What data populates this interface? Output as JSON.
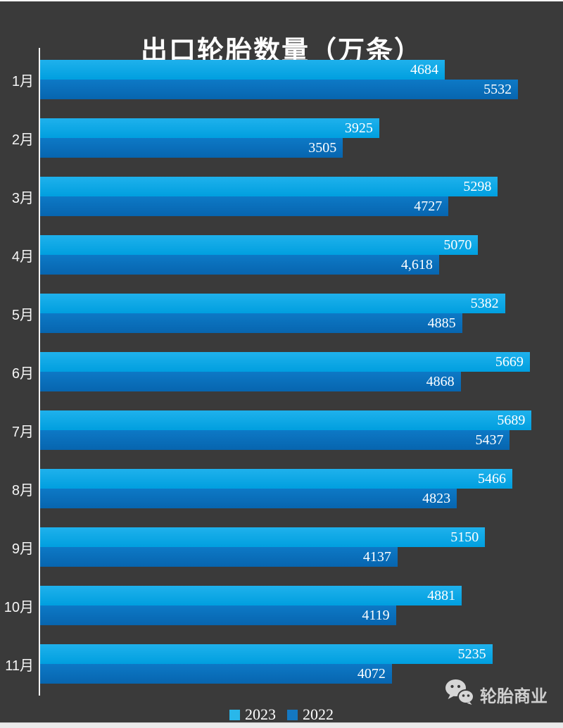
{
  "page": {
    "background": "#3a3a3a",
    "top_border_color": "#ffffff",
    "bottom_strip_color": "#ebebeb"
  },
  "chart_data": {
    "type": "bar",
    "orientation": "horizontal",
    "title": "出口轮胎数量（万条）",
    "categories": [
      "1月",
      "2月",
      "3月",
      "4月",
      "5月",
      "6月",
      "7月",
      "8月",
      "9月",
      "10月",
      "11月"
    ],
    "series": [
      {
        "name": "2023",
        "color": "#29b7ea",
        "color_top": "#1fb1ec",
        "color_bottom": "#009fdf",
        "values": [
          4684,
          3925,
          5298,
          5070,
          5382,
          5669,
          5689,
          5466,
          5150,
          4881,
          5235
        ],
        "labels": [
          "4684",
          "3925",
          "5298",
          "5070",
          "5382",
          "5669",
          "5689",
          "5466",
          "5150",
          "4881",
          "5235"
        ]
      },
      {
        "name": "2022",
        "color": "#1478c2",
        "color_top": "#0d79c6",
        "color_bottom": "#0765af",
        "values": [
          5532,
          3505,
          4727,
          4618,
          4885,
          4868,
          5437,
          4823,
          4137,
          4119,
          4072
        ],
        "labels": [
          "5532",
          "3505",
          "4727",
          "4,618",
          "4885",
          "4868",
          "5437",
          "4823",
          "4137",
          "4119",
          "4072"
        ]
      }
    ],
    "xlim": [
      0,
      5800
    ],
    "grid": false,
    "legend_position": "bottom",
    "value_labels": "inside-end",
    "axis_line_color": "#f2f2f2"
  },
  "watermark": {
    "text": "轮胎商业",
    "icon": "wechat-icon"
  }
}
